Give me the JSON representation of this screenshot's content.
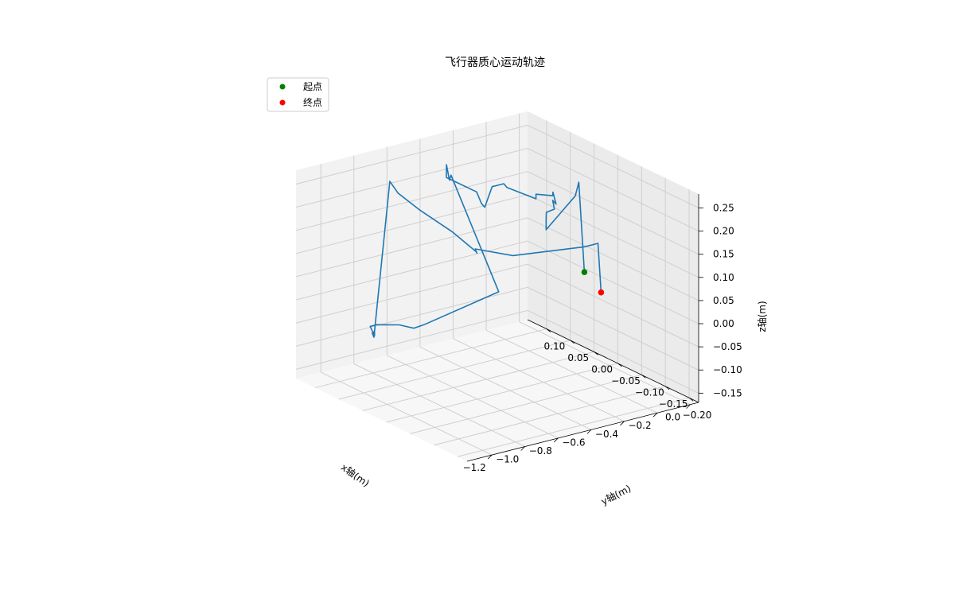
{
  "chart_data": {
    "type": "line3d",
    "title": "飞行器质心运动轨迹",
    "xlabel": "x轴(m)",
    "ylabel": "y轴(m)",
    "zlabel": "z轴(m)",
    "xlim": [
      -1.35,
      0.05
    ],
    "ylim": [
      -0.22,
      0.14
    ],
    "zlim": [
      -0.17,
      0.28
    ],
    "x_ticks": [
      -1.2,
      -1.0,
      -0.8,
      -0.6,
      -0.4,
      -0.2,
      0.0
    ],
    "x_tick_labels": [
      "−1.2",
      "−1.0",
      "−0.8",
      "−0.6",
      "−0.4",
      "−0.2",
      "0.0"
    ],
    "y_ticks": [
      -0.2,
      -0.15,
      -0.1,
      -0.05,
      0.0,
      0.05,
      0.1
    ],
    "y_tick_labels": [
      "−0.20",
      "−0.15",
      "−0.10",
      "−0.05",
      "0.00",
      "0.05",
      "0.10"
    ],
    "z_ticks": [
      -0.15,
      -0.1,
      -0.05,
      0.0,
      0.05,
      0.1,
      0.15,
      0.2,
      0.25
    ],
    "z_tick_labels": [
      "−0.15",
      "−0.10",
      "−0.05",
      "0.00",
      "0.05",
      "0.10",
      "0.15",
      "0.20",
      "0.25"
    ],
    "grid": true,
    "legend_position": "upper-left",
    "series": [
      {
        "color": "#1f77b4",
        "x": [
          0.02,
          -0.1,
          -0.15,
          -0.24,
          -0.24,
          -0.21,
          -0.19,
          -0.2,
          -0.18,
          -0.17,
          -0.2,
          -0.33,
          -0.33,
          -0.39,
          -0.41,
          -0.44,
          -0.46,
          -0.47,
          -0.48,
          -0.64,
          -0.66,
          -0.66,
          -0.7,
          -0.67,
          -0.71,
          -0.7,
          -0.67,
          -1.0,
          -1.04,
          -1.07,
          -1.12,
          -1.16,
          -1.22,
          -1.22,
          -1.32,
          -1.31,
          -1.07,
          -1.02,
          -0.92,
          -0.78,
          -0.66,
          -0.63,
          -0.64,
          -0.47,
          -0.15,
          -0.07,
          -0.08
        ],
        "y": [
          0.01,
          -0.02,
          -0.03,
          0.0,
          0.0,
          0.01,
          0.0,
          0.0,
          0.0,
          0.01,
          0.0,
          -0.01,
          -0.01,
          0.03,
          0.03,
          0.03,
          0.03,
          0.03,
          0.03,
          -0.01,
          -0.01,
          0.0,
          0.05,
          0.06,
          0.04,
          0.04,
          -0.05,
          -0.01,
          0.0,
          0.02,
          0.05,
          0.05,
          0.02,
          0.02,
          -0.01,
          -0.01,
          0.04,
          0.04,
          0.03,
          0.01,
          0.0,
          0.01,
          0.01,
          -0.01,
          -0.05,
          -0.05,
          -0.06
        ],
        "z": [
          0.0,
          0.22,
          0.2,
          0.12,
          0.14,
          0.15,
          0.16,
          0.18,
          0.17,
          0.19,
          0.19,
          0.21,
          0.2,
          0.21,
          0.22,
          0.22,
          0.22,
          0.22,
          0.22,
          0.21,
          0.22,
          0.24,
          0.25,
          0.27,
          0.25,
          0.26,
          0.05,
          -0.01,
          -0.02,
          -0.02,
          -0.03,
          -0.03,
          -0.03,
          -0.02,
          0.0,
          -0.01,
          0.28,
          0.25,
          0.21,
          0.16,
          0.11,
          0.1,
          0.11,
          0.09,
          0.1,
          0.1,
          0.0
        ]
      }
    ],
    "markers": [
      {
        "label": "起点",
        "color": "#008000",
        "x": 0.02,
        "y": 0.01,
        "z": 0.0
      },
      {
        "label": "终点",
        "color": "#ff0000",
        "x": -0.08,
        "y": -0.06,
        "z": 0.0
      }
    ]
  }
}
